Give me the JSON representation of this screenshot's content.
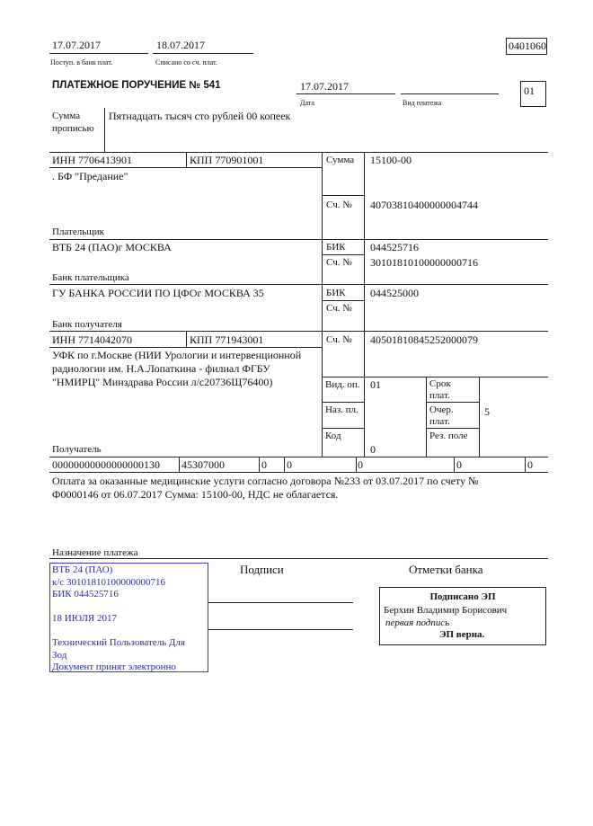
{
  "header": {
    "received_date": "17.07.2017",
    "received_label": "Поступ. в банк плат.",
    "debited_date": "18.07.2017",
    "debited_label": "Списано со сч. плат.",
    "form_code": "0401060"
  },
  "title": "ПЛАТЕЖНОЕ ПОРУЧЕНИЕ № 541",
  "date": "17.07.2017",
  "date_label": "Дата",
  "payment_type_label": "Вид платежа",
  "status_code": "01",
  "amount_words_label": "Сумма прописью",
  "amount_words": "Пятнадцать тысяч сто рублей 00 копеек",
  "payer": {
    "inn": "ИНН 7706413901",
    "kpp": "КПП 770901001",
    "name": ". БФ \"Предание\"",
    "label": "Плательщик",
    "amount_label": "Сумма",
    "amount": "15100-00",
    "account_label": "Сч. №",
    "account": "40703810400000004744"
  },
  "payer_bank": {
    "name": "ВТБ 24 (ПАО)г МОСКВА",
    "label": "Банк плательщика",
    "bik_label": "БИК",
    "bik": "044525716",
    "account_label": "Сч. №",
    "account": "30101810100000000716"
  },
  "payee_bank": {
    "name": "ГУ БАНКА РОССИИ ПО ЦФОг МОСКВА 35",
    "label": "Банк получателя",
    "bik_label": "БИК",
    "bik": "044525000",
    "account_label": "Сч. №"
  },
  "payee": {
    "inn": "ИНН 7714042070",
    "kpp": "КПП 771943001",
    "name_lines": [
      "УФК по г.Москве (НИИ Урологии и интервенционной",
      "радиологии им. Н.А.Лопаткина - филиал ФГБУ",
      "\"НМИРЦ\" Минздрава России л/с20736Щ76400)"
    ],
    "label": "Получатель",
    "account_label": "Сч. №",
    "account": "40501810845252000079"
  },
  "fields": {
    "op_type_label": "Вид. оп.",
    "op_type": "01",
    "purpose_code_label": "Наз. пл.",
    "code_label": "Код",
    "code": "0",
    "term_label": "Срок плат.",
    "priority_label": "Очер. плат.",
    "priority": "5",
    "reserve_label": "Рез. поле"
  },
  "tax_row": [
    "00000000000000000130",
    "45307000",
    "0",
    "0",
    "0",
    "0",
    "0"
  ],
  "purpose_lines": [
    "Оплата за оказанные медицинские услуги согласно договора №233 от 03.07.2017 по счету №",
    "Ф0000146 от 06.07.2017 Сумма: 15100-00, НДС не облагается."
  ],
  "purpose_label": "Назначение платежа",
  "stamp": {
    "lines": [
      "ВТБ 24 (ПАО)",
      "к/с 30101810100000000716",
      "БИК 044525716",
      "",
      "18 ИЮЛЯ 2017",
      "",
      "Технический Пользователь Для",
      "Зод",
      "Документ принят электронно"
    ],
    "color": "#2a2aa8"
  },
  "signatures_label": "Подписи",
  "bank_marks_label": "Отметки банка",
  "esign": {
    "title": "Подписано ЭП",
    "name": "Берхин Владимир Борисович",
    "role": "первая подпись",
    "verdict": "ЭП верна."
  }
}
